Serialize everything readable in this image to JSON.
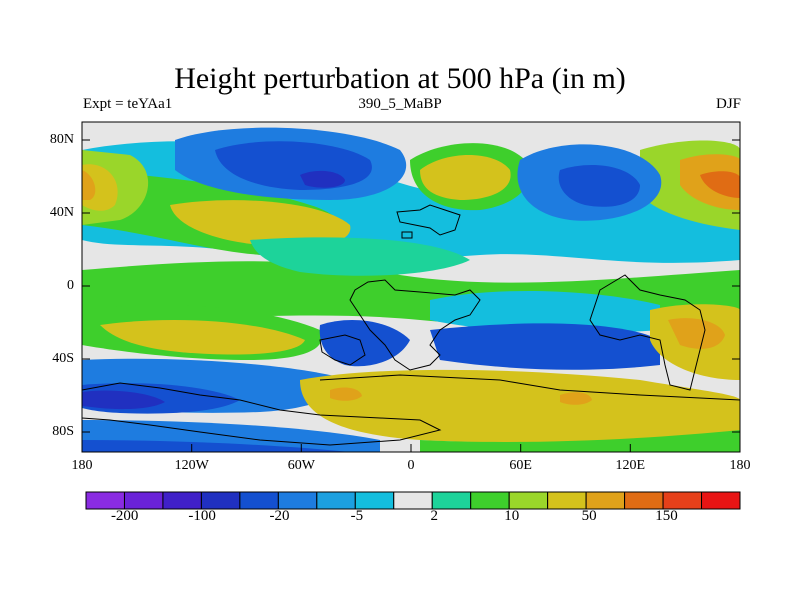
{
  "title": "Height perturbation at 500 hPa (in m)",
  "subtitle_left": "Expt = teYAa1",
  "subtitle_center": "390_5_MaBP",
  "subtitle_right": "DJF",
  "lat_ticks": [
    "80N",
    "40N",
    "0",
    "40S",
    "80S"
  ],
  "lon_ticks": [
    "180",
    "120W",
    "60W",
    "0",
    "60E",
    "120E",
    "180"
  ],
  "colorbar": {
    "colors": [
      "#8a2be2",
      "#6a22d8",
      "#4020c8",
      "#2030c0",
      "#1450d0",
      "#1e7ce0",
      "#1ca0e0",
      "#14bede",
      "#e6e6e6",
      "#1dd39a",
      "#3ecf2c",
      "#9ad62a",
      "#d4c21c",
      "#e0a21a",
      "#e06c14",
      "#e6401a",
      "#e81414"
    ],
    "labels": [
      "-200",
      "-100",
      "-20",
      "-5",
      "2",
      "10",
      "50",
      "150"
    ]
  },
  "colors": {
    "background_field": "#e6e6e6",
    "coast": "#000000"
  }
}
